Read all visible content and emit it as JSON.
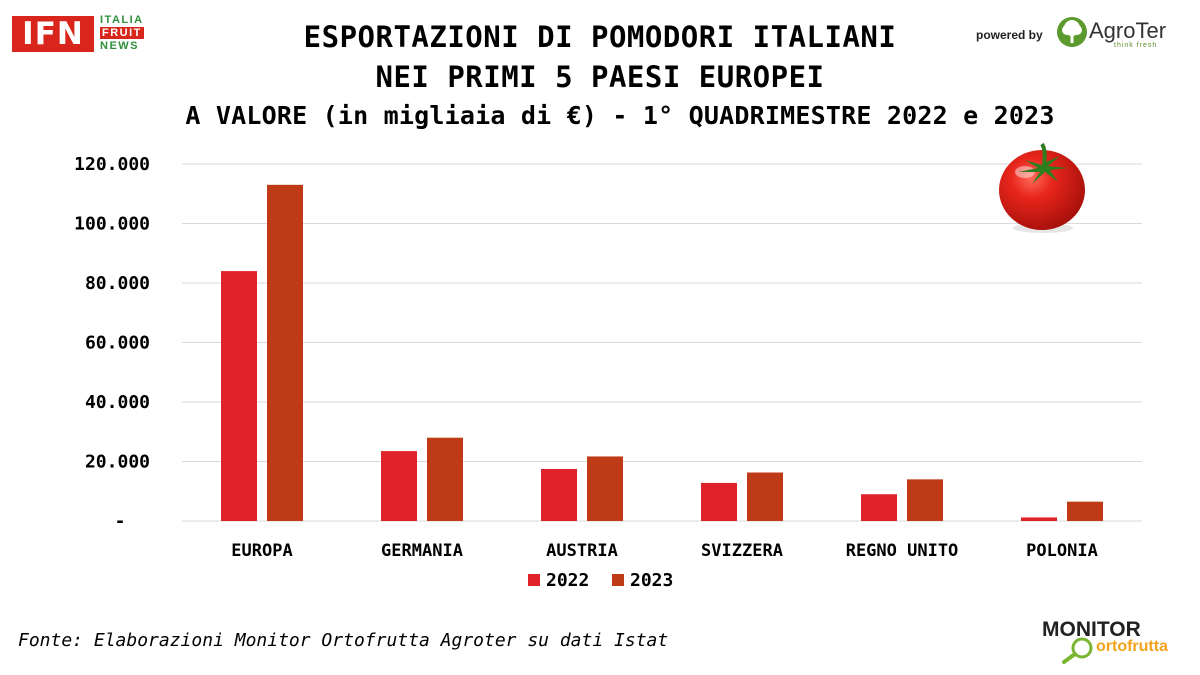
{
  "header": {
    "title_line1": "ESPORTAZIONI DI POMODORI ITALIANI",
    "title_line2": "NEI PRIMI 5 PAESI EUROPEI",
    "title_line3": "A VALORE (in migliaia di €) - 1° QUADRIMESTRE 2022 e 2023"
  },
  "logos": {
    "ifn_main": "IFN",
    "ifn_italia": "ITALIA",
    "ifn_fruit": "FRUIT",
    "ifn_news": "NEWS",
    "powered_by": "powered by",
    "agroter": "AgroTer",
    "agroter_tagline": "think fresh",
    "monitor": "MONITOR",
    "ortofrutta": "ortofrutta"
  },
  "source": "Fonte: Elaborazioni Monitor Ortofrutta Agroter su dati Istat",
  "colors": {
    "series_2022": "#e0222a",
    "series_2023": "#bf3a17",
    "grid": "#d9d9d9"
  },
  "chart_data": {
    "type": "bar",
    "title": "ESPORTAZIONI DI POMODORI ITALIANI NEI PRIMI 5 PAESI EUROPEI",
    "subtitle": "A VALORE (in migliaia di €) - 1° QUADRIMESTRE 2022 e 2023",
    "xlabel": "",
    "ylabel": "",
    "categories": [
      "EUROPA",
      "GERMANIA",
      "AUSTRIA",
      "SVIZZERA",
      "REGNO UNITO",
      "POLONIA"
    ],
    "series": [
      {
        "name": "2022",
        "values": [
          84000,
          23500,
          17500,
          12800,
          9000,
          1200
        ]
      },
      {
        "name": "2023",
        "values": [
          113000,
          28000,
          21700,
          16300,
          14000,
          6500
        ]
      }
    ],
    "ylim": [
      0,
      120000
    ],
    "yticks": [
      0,
      20000,
      40000,
      60000,
      80000,
      100000,
      120000
    ],
    "ytick_labels": [
      "-",
      "20.000",
      "40.000",
      "60.000",
      "80.000",
      "100.000",
      "120.000"
    ],
    "grid": true,
    "legend_position": "bottom"
  }
}
